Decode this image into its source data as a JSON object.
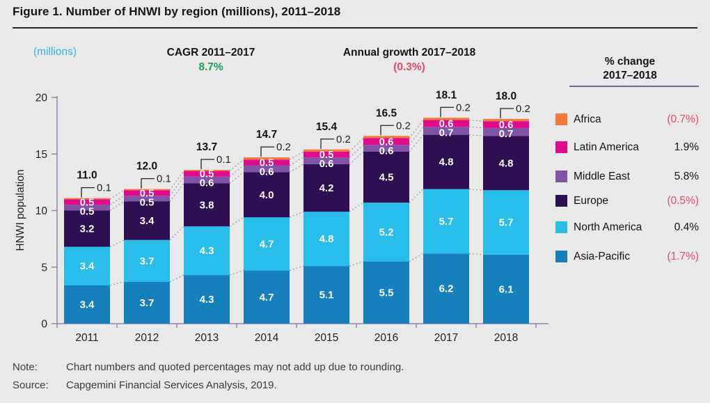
{
  "page": {
    "title": "Figure 1. Number of HNWI by region (millions), 2011–2018",
    "note_label": "Note:",
    "note": "Chart numbers and quoted percentages may not add up due to rounding.",
    "source_label": "Source:",
    "source": "Capgemini Financial Services Analysis, 2019."
  },
  "annotations": {
    "units": "(millions)",
    "cagr_label": "CAGR 2011–2017",
    "cagr_value": "8.7%",
    "growth_label": "Annual growth 2017–2018",
    "growth_value": "(0.3%)"
  },
  "legend": {
    "header_line1": "% change",
    "header_line2": "2017–2018",
    "items": [
      {
        "label": "Africa",
        "value": "(0.7%)",
        "negative": true,
        "color": "#f5793b"
      },
      {
        "label": "Latin America",
        "value": "1.9%",
        "negative": false,
        "color": "#df0a8c"
      },
      {
        "label": "Middle East",
        "value": "5.8%",
        "negative": false,
        "color": "#8153a6"
      },
      {
        "label": "Europe",
        "value": "(0.5%)",
        "negative": true,
        "color": "#2e0f52"
      },
      {
        "label": "North America",
        "value": "0.4%",
        "negative": false,
        "color": "#29bde9"
      },
      {
        "label": "Asia-Pacific",
        "value": "(1.7%)",
        "negative": true,
        "color": "#1580b9"
      }
    ]
  },
  "chart_data": {
    "type": "bar",
    "subtype": "stacked",
    "title": "Figure 1. Number of HNWI by region (millions), 2011–2018",
    "xlabel": "",
    "ylabel": "HNWI population",
    "ylim": [
      0,
      20
    ],
    "yticks": [
      0,
      5,
      10,
      15,
      20
    ],
    "grid": false,
    "legend_position": "right",
    "categories": [
      "2011",
      "2012",
      "2013",
      "2014",
      "2015",
      "2016",
      "2017",
      "2018"
    ],
    "totals": [
      "11.0",
      "12.0",
      "13.7",
      "14.7",
      "15.4",
      "16.5",
      "18.1",
      "18.0"
    ],
    "callouts": [
      "0.1",
      "0.1",
      "0.1",
      "0.2",
      "0.2",
      "0.2",
      "0.2",
      "0.2"
    ],
    "series": [
      {
        "name": "Asia-Pacific",
        "color": "#1580b9",
        "show_labels": true,
        "values": [
          3.4,
          3.7,
          4.3,
          4.7,
          5.1,
          5.5,
          6.2,
          6.1
        ]
      },
      {
        "name": "North America",
        "color": "#29bde9",
        "show_labels": true,
        "values": [
          3.4,
          3.7,
          4.3,
          4.7,
          4.8,
          5.2,
          5.7,
          5.7
        ]
      },
      {
        "name": "Europe",
        "color": "#2e0f52",
        "show_labels": true,
        "values": [
          3.2,
          3.4,
          3.8,
          4.0,
          4.2,
          4.5,
          4.8,
          4.8
        ]
      },
      {
        "name": "Middle East",
        "color": "#8153a6",
        "show_labels": true,
        "values": [
          0.5,
          0.5,
          0.6,
          0.6,
          0.6,
          0.6,
          0.7,
          0.7
        ]
      },
      {
        "name": "Latin America",
        "color": "#df0a8c",
        "show_labels": true,
        "values": [
          0.5,
          0.5,
          0.5,
          0.5,
          0.5,
          0.6,
          0.6,
          0.6
        ]
      },
      {
        "name": "Africa",
        "color": "#f5793b",
        "show_labels": false,
        "values": [
          0.1,
          0.1,
          0.1,
          0.2,
          0.2,
          0.2,
          0.2,
          0.2
        ]
      }
    ]
  },
  "theme": {
    "background": "#e9e9e9",
    "axis_color": "#8f87a6",
    "connector_color": "#8c8c8c",
    "positive_green": "#1ca15f",
    "negative_pink": "#e04a6b",
    "units_cyan": "#2bb5e0",
    "legend_rule_purple": "#7a5fa5",
    "title_rule_dark": "#23232c"
  }
}
